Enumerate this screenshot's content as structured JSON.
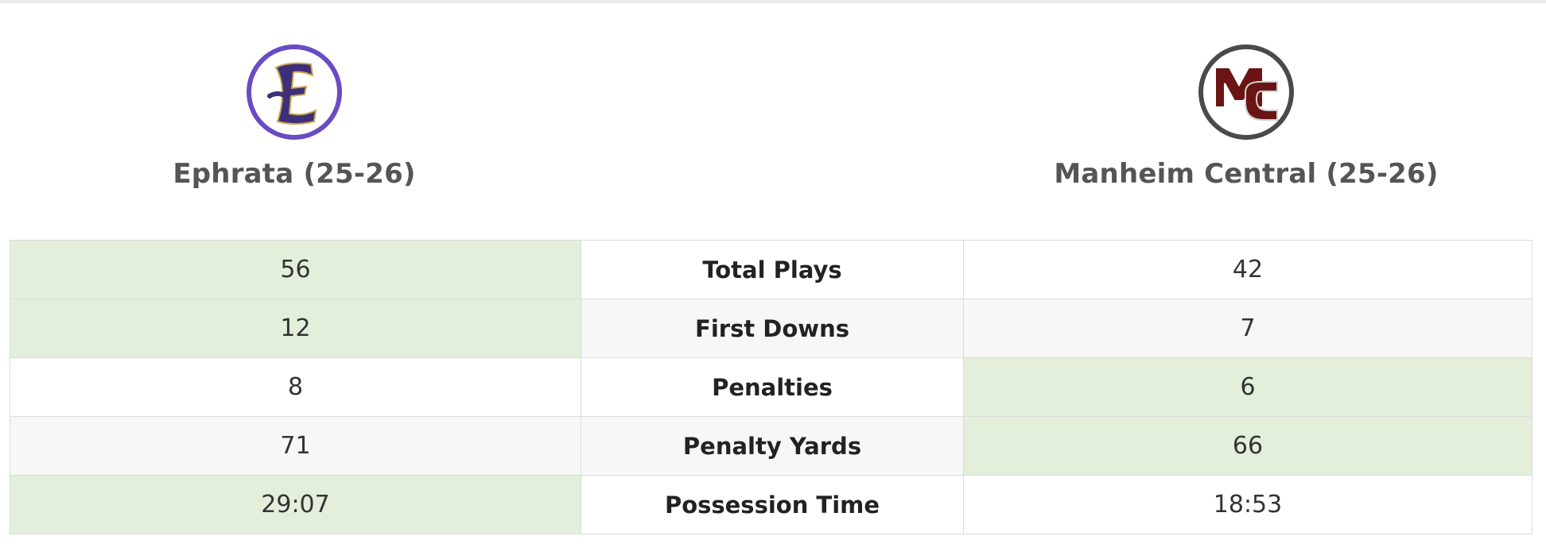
{
  "teams": {
    "home": {
      "name": "Ephrata (25-26)",
      "logo_letter": "E",
      "logo_ring_color": "#6a4bc4",
      "logo_letter_color": "#3e2f7a"
    },
    "away": {
      "name": "Manheim Central (25-26)",
      "logo_letters": "MC",
      "logo_ring_color": "#4a4a4a",
      "logo_letter_color": "#6b1414"
    }
  },
  "colors": {
    "winner_cell": "#e3efdb",
    "alt_row": "#f7f7f7"
  },
  "stats": [
    {
      "label": "Total Plays",
      "home": "56",
      "away": "42",
      "winner": "home"
    },
    {
      "label": "First Downs",
      "home": "12",
      "away": "7",
      "winner": "home"
    },
    {
      "label": "Penalties",
      "home": "8",
      "away": "6",
      "winner": "away"
    },
    {
      "label": "Penalty Yards",
      "home": "71",
      "away": "66",
      "winner": "away"
    },
    {
      "label": "Possession Time",
      "home": "29:07",
      "away": "18:53",
      "winner": "home"
    }
  ]
}
